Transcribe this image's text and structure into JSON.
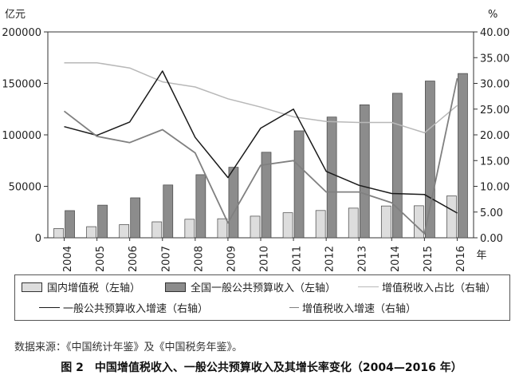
{
  "chart_data": {
    "type": "bar+line",
    "y_left_unit": "亿元",
    "y_right_unit": "%",
    "x_unit": "年",
    "categories": [
      "2004",
      "2005",
      "2006",
      "2007",
      "2008",
      "2009",
      "2010",
      "2011",
      "2012",
      "2013",
      "2014",
      "2015",
      "2016"
    ],
    "y_left": {
      "min": 0,
      "max": 200000,
      "ticks": [
        "0",
        "50000",
        "100000",
        "150000",
        "200000"
      ]
    },
    "y_right": {
      "min": 0,
      "max": 40,
      "ticks": [
        "0.00",
        "5.00",
        "10.00",
        "15.00",
        "20.00",
        "25.00",
        "30.00",
        "35.00",
        "40.00"
      ]
    },
    "grid": false,
    "legend_position": "bottom",
    "bar_series": [
      {
        "name": "国内增值税（左轴）",
        "color": "#dddddd",
        "values": [
          9000,
          10800,
          12800,
          15500,
          18000,
          18500,
          21000,
          24300,
          26500,
          28800,
          30900,
          31100,
          40700
        ]
      },
      {
        "name": "全国一般公共预算收入（左轴）",
        "color": "#8c8c8c",
        "values": [
          26400,
          31700,
          38800,
          51300,
          61300,
          68500,
          83100,
          103900,
          117300,
          129200,
          140400,
          152300,
          159600
        ]
      }
    ],
    "line_series": [
      {
        "name": "增值税收入占比（右轴）",
        "color": "#b8b8b8",
        "width": 1.5,
        "values": [
          34.0,
          34.0,
          33.0,
          30.3,
          29.3,
          27.0,
          25.4,
          23.5,
          22.6,
          22.4,
          22.4,
          20.4,
          25.7
        ]
      },
      {
        "name": "一般公共预算收入增速（右轴）",
        "color": "#1a1a1a",
        "width": 1.5,
        "values": [
          21.6,
          19.9,
          22.5,
          32.4,
          19.5,
          11.7,
          21.3,
          25.0,
          12.9,
          10.2,
          8.6,
          8.4,
          4.8
        ]
      },
      {
        "name": "增值税收入增速（右轴）",
        "color": "#808080",
        "width": 1.8,
        "values": [
          24.6,
          19.7,
          18.5,
          21.0,
          16.5,
          2.9,
          14.1,
          15.0,
          8.9,
          8.9,
          6.8,
          0.8,
          31.0
        ]
      }
    ]
  },
  "legend": {
    "item1": "国内增值税（左轴）",
    "item2": "全国一般公共预算收入（左轴）",
    "item3": "增值税收入占比（右轴）",
    "item4": "一般公共预算收入增速（右轴）",
    "item5": "增值税收入增速（右轴）"
  },
  "source_note": "数据来源：《中国统计年鉴》及《中国税务年鉴》。",
  "caption": "图 2　中国增值税收入、一般公共预算收入及其增长率变化（2004—2016 年）"
}
